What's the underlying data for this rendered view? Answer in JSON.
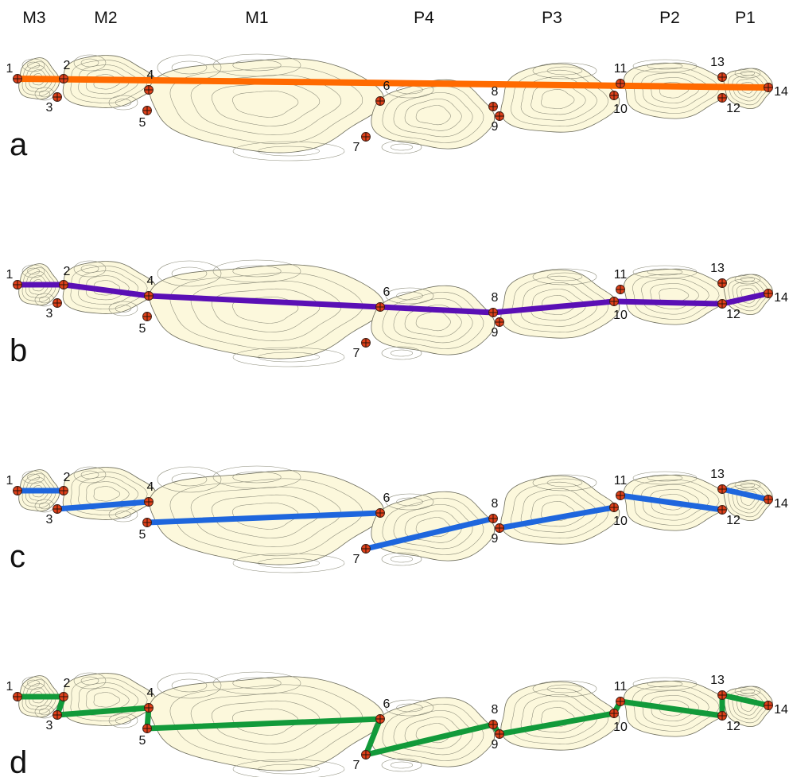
{
  "tooth_labels": [
    "M3",
    "M2",
    "M1",
    "P4",
    "P3",
    "P2",
    "P1"
  ],
  "panels": [
    {
      "letter": "a",
      "line_color": "#ff6a00"
    },
    {
      "letter": "b",
      "line_color": "#5a0fb5"
    },
    {
      "letter": "c",
      "line_color": "#1e66dd"
    },
    {
      "letter": "d",
      "line_color": "#129a3a"
    }
  ],
  "landmark_labels": [
    "1",
    "2",
    "3",
    "4",
    "5",
    "6",
    "7",
    "8",
    "9",
    "10",
    "11",
    "12",
    "13",
    "14"
  ],
  "colors": {
    "tooth_fill": "#fcf8dc",
    "contour": "#8a8a78",
    "landmark": "#e0401a"
  }
}
